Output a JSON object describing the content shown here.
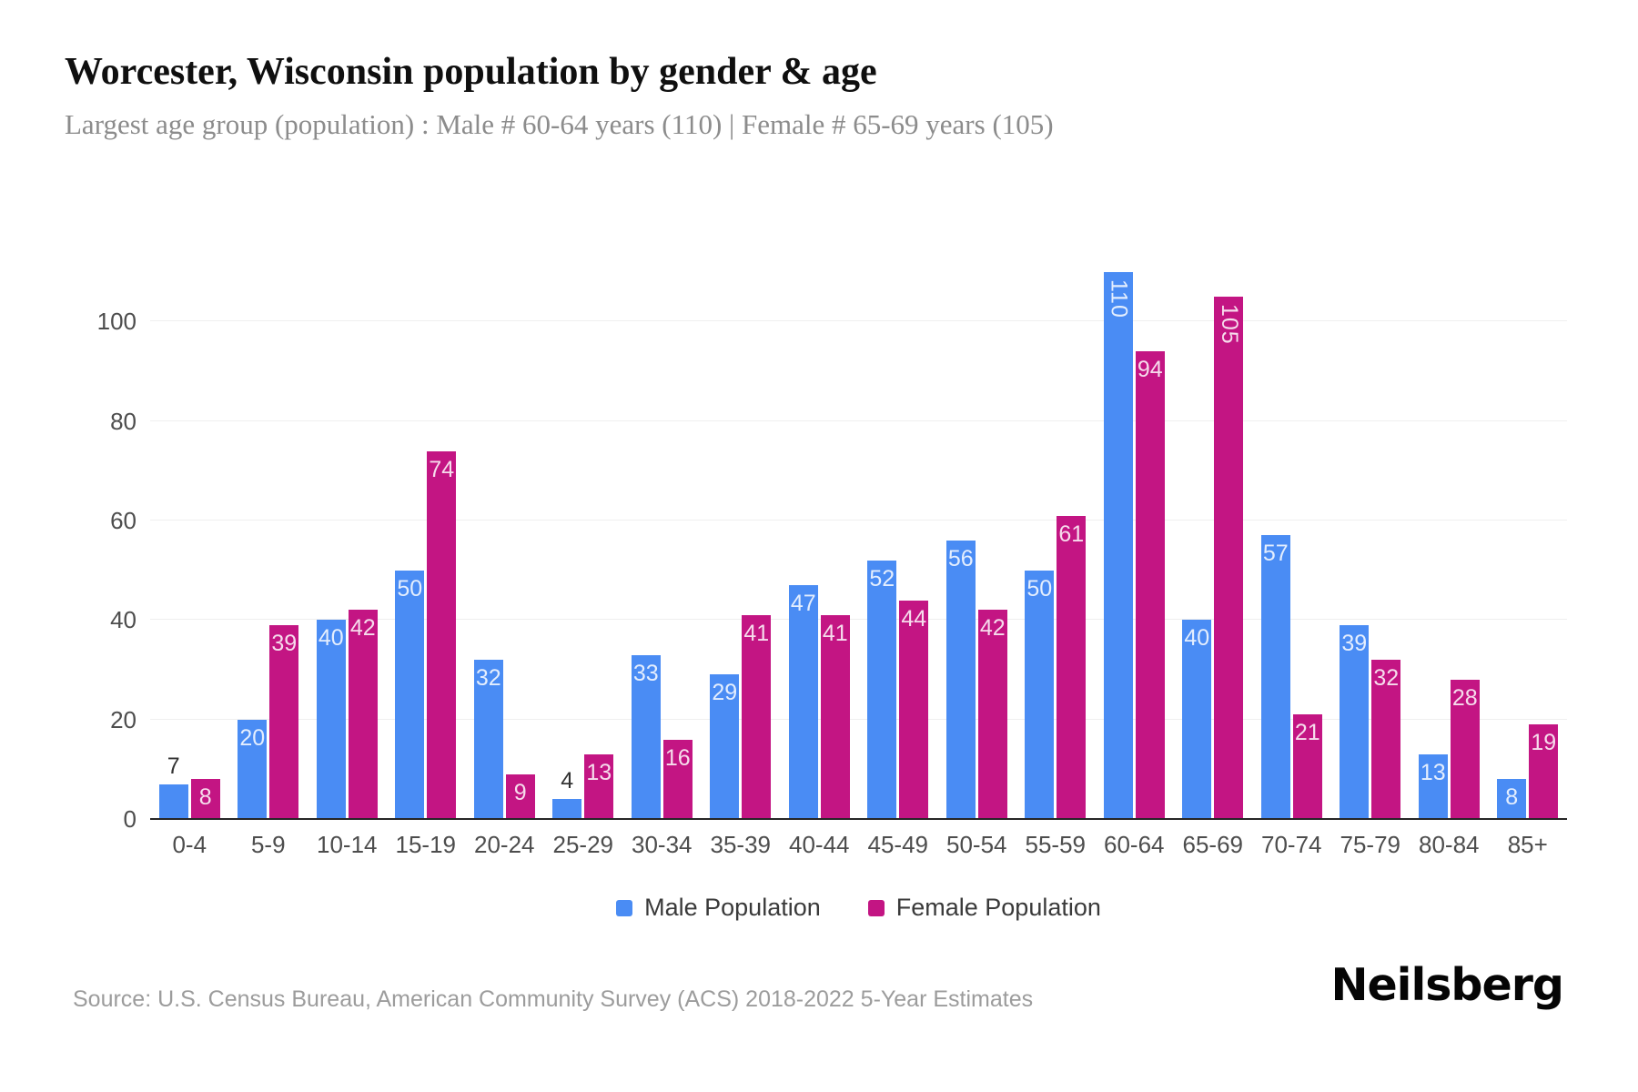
{
  "page": {
    "source": "Source: U.S. Census Bureau, American Community Survey (ACS) 2018-2022 5-Year Estimates",
    "brand": "Neilsberg"
  },
  "chart_data": {
    "type": "bar",
    "title": "Worcester, Wisconsin population by gender & age",
    "subtitle": "Largest age group (population) : Male # 60-64 years (110) | Female # 65-69 years (105)",
    "categories": [
      "0-4",
      "5-9",
      "10-14",
      "15-19",
      "20-24",
      "25-29",
      "30-34",
      "35-39",
      "40-44",
      "45-49",
      "50-54",
      "55-59",
      "60-64",
      "65-69",
      "70-74",
      "75-79",
      "80-84",
      "85+"
    ],
    "series": [
      {
        "name": "Male Population",
        "key": "male",
        "color": "#4a8cf4",
        "values": [
          7,
          20,
          40,
          50,
          32,
          4,
          33,
          29,
          47,
          52,
          56,
          50,
          110,
          40,
          57,
          39,
          13,
          8
        ]
      },
      {
        "name": "Female Population",
        "key": "female",
        "color": "#c31583",
        "values": [
          8,
          39,
          42,
          74,
          9,
          13,
          16,
          41,
          41,
          44,
          42,
          61,
          94,
          105,
          21,
          32,
          28,
          19
        ]
      }
    ],
    "xlabel": "",
    "ylabel": "",
    "ylim": [
      0,
      118
    ],
    "yticks": [
      0,
      20,
      40,
      60,
      80,
      100
    ],
    "grid": "horizontal",
    "legend_position": "bottom",
    "value_labels": "inside-top; above bar when value < 8; rotated vertical when value >= 100"
  }
}
